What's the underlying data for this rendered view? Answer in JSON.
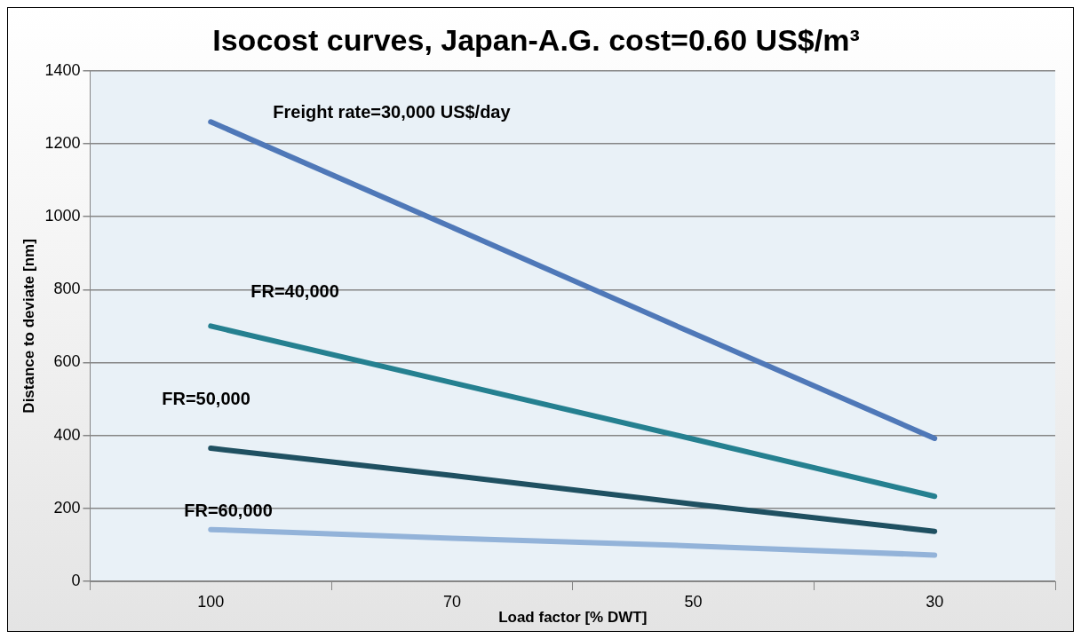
{
  "chart_data": {
    "type": "line",
    "title": "Isocost curves, Japan-A.G. cost=0.60 US$/m³",
    "xlabel": "Load factor [% DWT]",
    "ylabel": "Distance to deviate [nm]",
    "categories": [
      "100",
      "70",
      "50",
      "30"
    ],
    "series": [
      {
        "name": "Freight rate=30,000 US$/day",
        "color": "#4f78b8",
        "values": [
          1260,
          971,
          680,
          392
        ]
      },
      {
        "name": "FR=40,000",
        "color": "#258090",
        "values": [
          700,
          545,
          390,
          233
        ]
      },
      {
        "name": "FR=50,000",
        "color": "#1f5061",
        "values": [
          365,
          290,
          212,
          137
        ]
      },
      {
        "name": "FR=60,000",
        "color": "#93b3d9",
        "values": [
          142,
          118,
          97,
          72
        ]
      }
    ],
    "ylim": [
      0,
      1400
    ],
    "yticks": [
      0,
      200,
      400,
      600,
      800,
      1000,
      1200,
      1400
    ],
    "grid": "y",
    "legend": false,
    "marker": "none",
    "line_style": "solid"
  }
}
